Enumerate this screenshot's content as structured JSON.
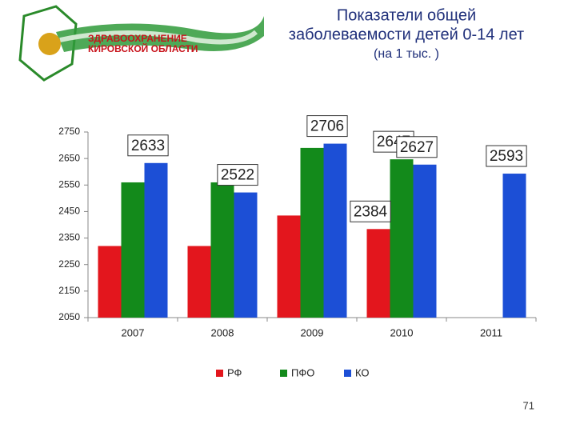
{
  "logo": {
    "line1": "ЗДРАВООХРАНЕНИЕ",
    "line2": "КИРОВСКОЙ ОБЛАСТИ"
  },
  "chart_data": {
    "type": "bar",
    "title_lines": [
      "Показатели  общей",
      "заболеваемости детей 0-14 лет"
    ],
    "subtitle": "(на 1 тыс. )",
    "categories": [
      "2007",
      "2008",
      "2009",
      "2010",
      "2011"
    ],
    "series": [
      {
        "name": "РФ",
        "color": "#e3161d",
        "values": [
          2320,
          2320,
          2435,
          2384,
          null
        ],
        "data_labels": [
          false,
          false,
          false,
          true,
          false
        ]
      },
      {
        "name": "ПФО",
        "color": "#138a1b",
        "values": [
          2560,
          2560,
          2690,
          2647,
          null
        ],
        "data_labels": [
          false,
          false,
          false,
          true,
          false
        ]
      },
      {
        "name": "КО",
        "color": "#1c4fd6",
        "values": [
          2633,
          2522,
          2706,
          2627,
          2593
        ],
        "data_labels": [
          true,
          true,
          true,
          true,
          true
        ]
      }
    ],
    "ylim": [
      2050,
      2750
    ],
    "yticks": [
      2050,
      2150,
      2250,
      2350,
      2450,
      2550,
      2650,
      2750
    ],
    "grid": false,
    "legend": "bottom"
  },
  "page_number": "71"
}
